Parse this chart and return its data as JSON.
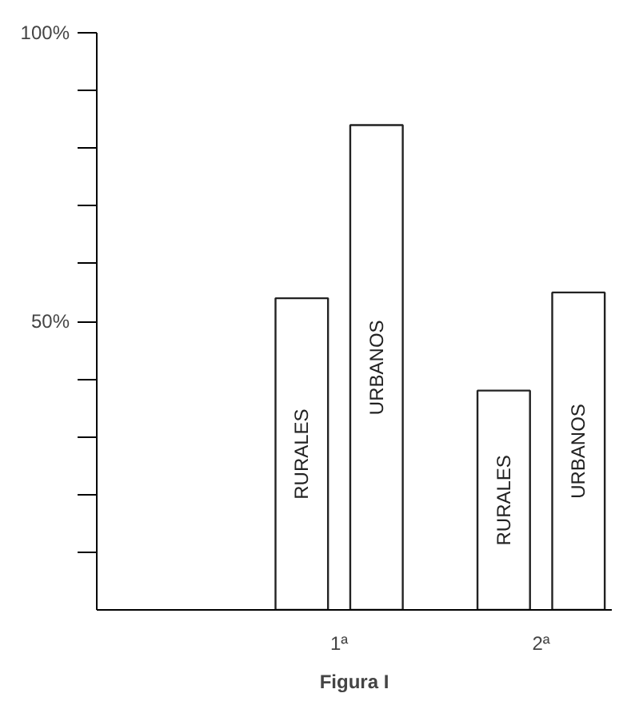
{
  "chart_data": {
    "type": "bar",
    "categories": [
      "1ª",
      "2ª"
    ],
    "series": [
      {
        "name": "RURALES",
        "color": "#ffffff",
        "values": [
          54,
          38
        ]
      },
      {
        "name": "URBANOS",
        "color": "#ffffff",
        "values": [
          84,
          55
        ]
      }
    ],
    "ylim": [
      0,
      100
    ],
    "yticks": [
      {
        "value": 10,
        "label": null
      },
      {
        "value": 20,
        "label": null
      },
      {
        "value": 30,
        "label": null
      },
      {
        "value": 40,
        "label": null
      },
      {
        "value": 50,
        "label": "50%"
      },
      {
        "value": 60,
        "label": null
      },
      {
        "value": 70,
        "label": null
      },
      {
        "value": 80,
        "label": null
      },
      {
        "value": 90,
        "label": null
      },
      {
        "value": 100,
        "label": "100%"
      }
    ],
    "annotations": [
      "Figura I"
    ],
    "grid": false
  }
}
